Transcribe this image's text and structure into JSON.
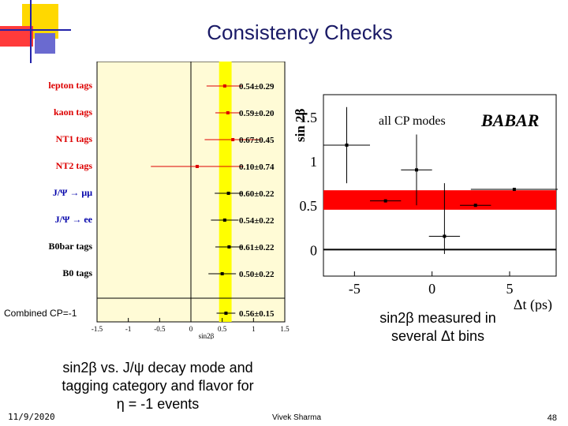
{
  "slide": {
    "title": "Consistency Checks",
    "caption_right_line1": "sin2β measured in",
    "caption_right_line2": "several Δt bins",
    "caption_left_line1": "sin2β vs. J/ψ decay mode and",
    "caption_left_line2": "tagging category and flavor for",
    "caption_left_line3": "η = -1 events",
    "footer_date": "11/9/2020",
    "footer_author": "Vivek Sharma",
    "footer_page": "48"
  },
  "colors": {
    "title": "#1a1a66",
    "left_panel_bg": "#fffbd6",
    "band_yellow": "#ffff00",
    "band_red": "#ff0000",
    "text_red": "#dd0000",
    "text_blue": "#0000aa",
    "deco_yellow": "#ffd800",
    "deco_red": "#ff0000",
    "deco_blue": "#2222aa"
  },
  "chart_data": [
    {
      "type": "scatter",
      "xlabel": "sin2β",
      "xlim": [
        -1.5,
        1.5
      ],
      "x_ticks": [
        "-1.5",
        "-1",
        "-0.5",
        "0",
        "0.5",
        "1",
        "1.5"
      ],
      "band_x": [
        0.45,
        0.65
      ],
      "rows": [
        {
          "label": "lepton tags",
          "value": 0.54,
          "text": "0.54±0.29",
          "color": "red"
        },
        {
          "label": "kaon tags",
          "value": 0.59,
          "text": "0.59±0.20",
          "color": "red"
        },
        {
          "label": "NT1 tags",
          "value": 0.67,
          "text": "0.67±0.45",
          "color": "red"
        },
        {
          "label": "NT2 tags",
          "value": 0.1,
          "text": "0.10±0.74",
          "color": "red"
        },
        {
          "label": "J/Ψ → μμ",
          "value": 0.6,
          "text": "0.60±0.22",
          "color": "blue"
        },
        {
          "label": "J/Ψ → ee",
          "value": 0.54,
          "text": "0.54±0.22",
          "color": "blue"
        },
        {
          "label": "B0bar tags",
          "value": 0.61,
          "text": "0.61±0.22",
          "color": "black"
        },
        {
          "label": "B0 tags",
          "value": 0.5,
          "text": "0.50±0.22",
          "color": "black"
        }
      ],
      "combined": {
        "label": "Combined CP=-1",
        "value": 0.56,
        "text": "0.56±0.15"
      }
    },
    {
      "type": "scatter",
      "title": "all CP modes",
      "logo": "BABAR",
      "xlabel": "Δt (ps)",
      "ylabel": "sin 2β",
      "xlim": [
        -7,
        8
      ],
      "ylim": [
        -0.3,
        1.75
      ],
      "x_ticks": [
        "-5",
        "0",
        "5"
      ],
      "y_ticks": [
        "0",
        "0.5",
        "1",
        "1.5"
      ],
      "band_y": [
        0.45,
        0.67
      ],
      "points": [
        {
          "x": -5.5,
          "y": 1.18,
          "xerr": 1.5,
          "yerr_lo": 0.43,
          "yerr_hi": 0.43
        },
        {
          "x": -3.0,
          "y": 0.55,
          "xerr": 1.0,
          "yerr_lo": 0.0,
          "yerr_hi": 0.0
        },
        {
          "x": -1.0,
          "y": 0.9,
          "xerr": 1.0,
          "yerr_lo": 0.4,
          "yerr_hi": 0.4
        },
        {
          "x": 0.8,
          "y": 0.15,
          "xerr": 1.0,
          "yerr_lo": 0.2,
          "yerr_hi": 0.6
        },
        {
          "x": 2.8,
          "y": 0.5,
          "xerr": 1.0,
          "yerr_lo": 0.0,
          "yerr_hi": 0.0
        },
        {
          "x": 5.3,
          "y": 0.68,
          "xerr": 2.8,
          "yerr_lo": 0.0,
          "yerr_hi": 0.0
        }
      ]
    }
  ]
}
